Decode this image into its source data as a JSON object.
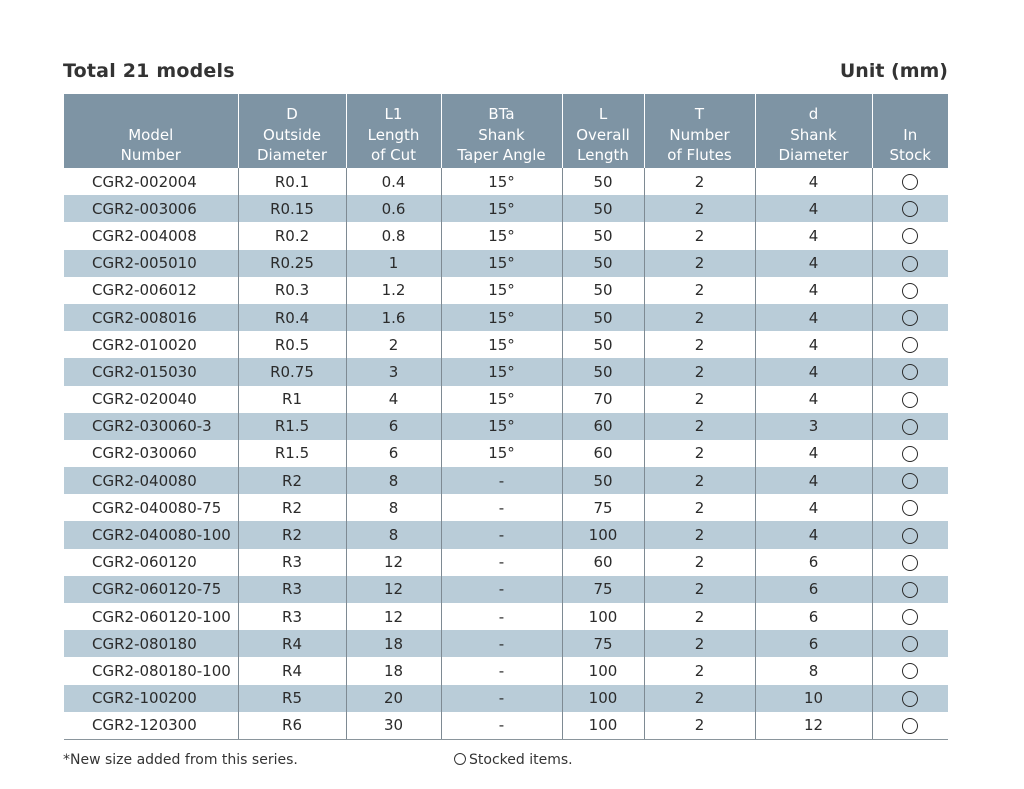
{
  "header": {
    "title": "Total 21 models",
    "unit": "Unit (mm)"
  },
  "columns": [
    {
      "symbol": "",
      "line1": "Model",
      "line2": "Number"
    },
    {
      "symbol": "D",
      "line1": "Outside",
      "line2": "Diameter"
    },
    {
      "symbol": "L1",
      "line1": "Length",
      "line2": "of Cut"
    },
    {
      "symbol": "BTa",
      "line1": "Shank",
      "line2": "Taper Angle"
    },
    {
      "symbol": "L",
      "line1": "Overall",
      "line2": "Length"
    },
    {
      "symbol": "T",
      "line1": "Number",
      "line2": "of Flutes"
    },
    {
      "symbol": "d",
      "line1": "Shank",
      "line2": "Diameter"
    },
    {
      "symbol": "",
      "line1": "In",
      "line2": "Stock"
    }
  ],
  "rows": [
    {
      "model": "CGR2-002004",
      "d": "R0.1",
      "l1": "0.4",
      "bta": "15°",
      "l": "50",
      "t": "2",
      "shank": "4",
      "stock": "○"
    },
    {
      "model": "CGR2-003006",
      "d": "R0.15",
      "l1": "0.6",
      "bta": "15°",
      "l": "50",
      "t": "2",
      "shank": "4",
      "stock": "○"
    },
    {
      "model": "CGR2-004008",
      "d": "R0.2",
      "l1": "0.8",
      "bta": "15°",
      "l": "50",
      "t": "2",
      "shank": "4",
      "stock": "○"
    },
    {
      "model": "CGR2-005010",
      "d": "R0.25",
      "l1": "1",
      "bta": "15°",
      "l": "50",
      "t": "2",
      "shank": "4",
      "stock": "○"
    },
    {
      "model": "CGR2-006012",
      "d": "R0.3",
      "l1": "1.2",
      "bta": "15°",
      "l": "50",
      "t": "2",
      "shank": "4",
      "stock": "○"
    },
    {
      "model": "CGR2-008016",
      "d": "R0.4",
      "l1": "1.6",
      "bta": "15°",
      "l": "50",
      "t": "2",
      "shank": "4",
      "stock": "○"
    },
    {
      "model": "CGR2-010020",
      "d": "R0.5",
      "l1": "2",
      "bta": "15°",
      "l": "50",
      "t": "2",
      "shank": "4",
      "stock": "○"
    },
    {
      "model": "CGR2-015030",
      "d": "R0.75",
      "l1": "3",
      "bta": "15°",
      "l": "50",
      "t": "2",
      "shank": "4",
      "stock": "○"
    },
    {
      "model": "CGR2-020040",
      "d": "R1",
      "l1": "4",
      "bta": "15°",
      "l": "70",
      "t": "2",
      "shank": "4",
      "stock": "○"
    },
    {
      "model": "CGR2-030060-3",
      "d": "R1.5",
      "l1": "6",
      "bta": "15°",
      "l": "60",
      "t": "2",
      "shank": "3",
      "stock": "○"
    },
    {
      "model": "CGR2-030060",
      "d": "R1.5",
      "l1": "6",
      "bta": "15°",
      "l": "60",
      "t": "2",
      "shank": "4",
      "stock": "○"
    },
    {
      "model": "CGR2-040080",
      "d": "R2",
      "l1": "8",
      "bta": "-",
      "l": "50",
      "t": "2",
      "shank": "4",
      "stock": "○"
    },
    {
      "model": "CGR2-040080-75",
      "d": "R2",
      "l1": "8",
      "bta": "-",
      "l": "75",
      "t": "2",
      "shank": "4",
      "stock": "○"
    },
    {
      "model": "CGR2-040080-100",
      "d": "R2",
      "l1": "8",
      "bta": "-",
      "l": "100",
      "t": "2",
      "shank": "4",
      "stock": "○"
    },
    {
      "model": "CGR2-060120",
      "d": "R3",
      "l1": "12",
      "bta": "-",
      "l": "60",
      "t": "2",
      "shank": "6",
      "stock": "○"
    },
    {
      "model": "CGR2-060120-75",
      "d": "R3",
      "l1": "12",
      "bta": "-",
      "l": "75",
      "t": "2",
      "shank": "6",
      "stock": "○"
    },
    {
      "model": "CGR2-060120-100",
      "d": "R3",
      "l1": "12",
      "bta": "-",
      "l": "100",
      "t": "2",
      "shank": "6",
      "stock": "○"
    },
    {
      "model": "CGR2-080180",
      "d": "R4",
      "l1": "18",
      "bta": "-",
      "l": "75",
      "t": "2",
      "shank": "6",
      "stock": "○"
    },
    {
      "model": "CGR2-080180-100",
      "d": "R4",
      "l1": "18",
      "bta": "-",
      "l": "100",
      "t": "2",
      "shank": "8",
      "stock": "○"
    },
    {
      "model": "CGR2-100200",
      "d": "R5",
      "l1": "20",
      "bta": "-",
      "l": "100",
      "t": "2",
      "shank": "10",
      "stock": "○"
    },
    {
      "model": "CGR2-120300",
      "d": "R6",
      "l1": "30",
      "bta": "-",
      "l": "100",
      "t": "2",
      "shank": "12",
      "stock": "○"
    }
  ],
  "footer": {
    "note": "*New size added from this series.",
    "legend": "Stocked items."
  },
  "colors": {
    "header_bg": "#7e94a4",
    "alt_row_bg": "#b9ccd8",
    "text": "#2b2b2b"
  }
}
